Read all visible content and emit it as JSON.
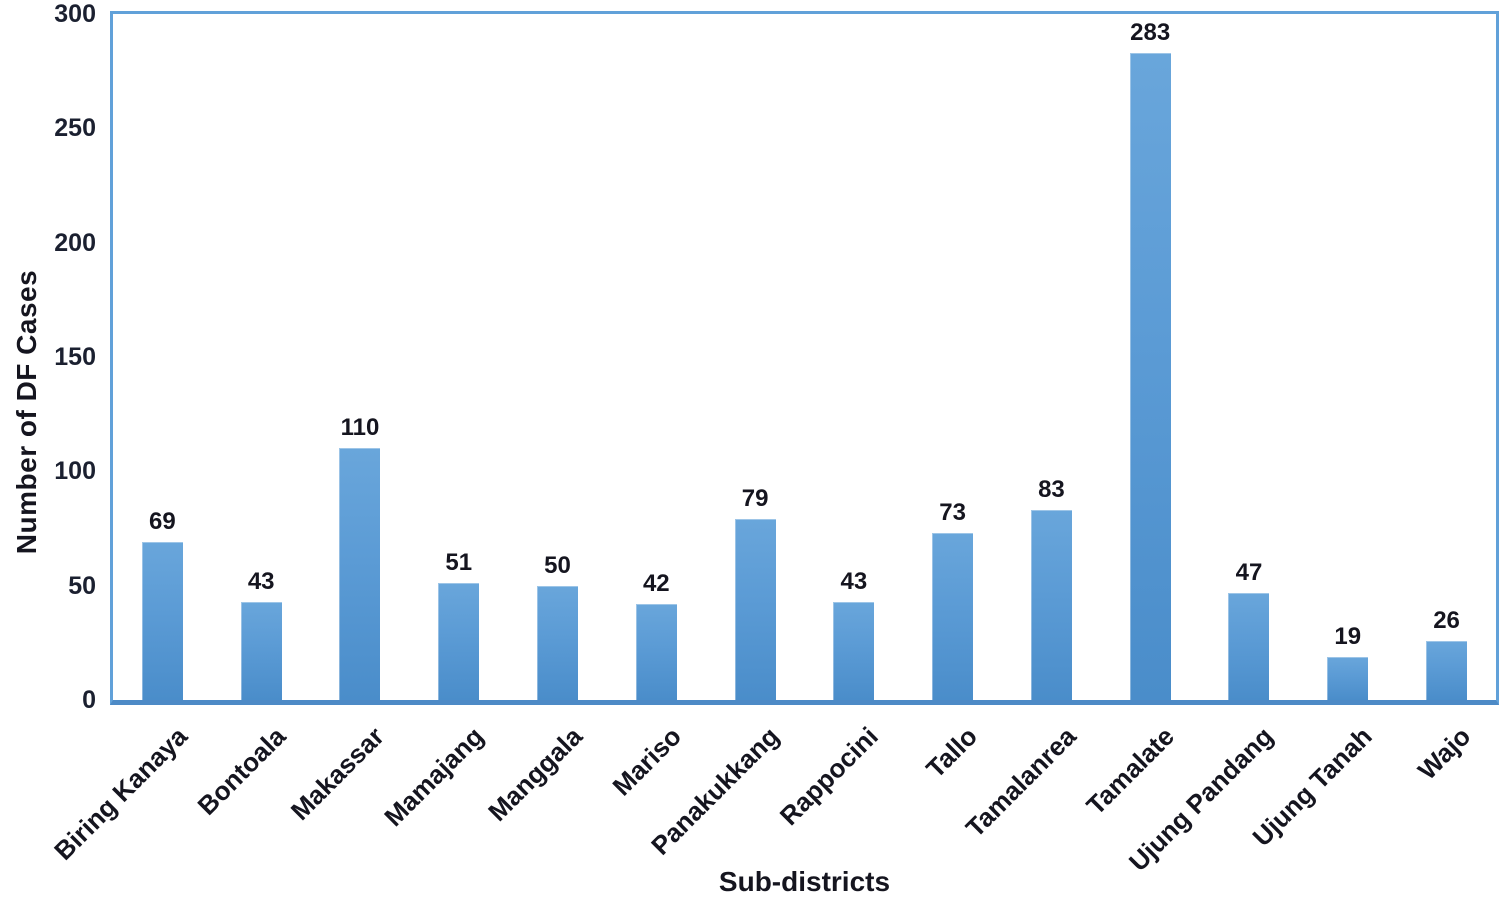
{
  "chart_data": {
    "type": "bar",
    "title": "",
    "xlabel": "Sub-districts",
    "ylabel": "Number of DF Cases",
    "categories": [
      "Biring Kanaya",
      "Bontoala",
      "Makassar",
      "Mamajang",
      "Manggala",
      "Mariso",
      "Panakukkang",
      "Rappocini",
      "Tallo",
      "Tamalanrea",
      "Tamalate",
      "Ujung Pandang",
      "Ujung Tanah",
      "Wajo"
    ],
    "values": [
      69,
      43,
      110,
      51,
      50,
      42,
      79,
      43,
      73,
      83,
      283,
      47,
      19,
      26
    ],
    "ylim": [
      0,
      300
    ],
    "yticks": [
      0,
      50,
      100,
      150,
      200,
      250,
      300
    ],
    "grid": false,
    "legend_position": "none",
    "data_labels": true,
    "bar_color": "#5b9bd5",
    "plot_border_color": "#61a1d9",
    "axis_line_color": "#4d8ac6",
    "text_color": "#15151f",
    "x_tick_rotation_deg": 45
  }
}
